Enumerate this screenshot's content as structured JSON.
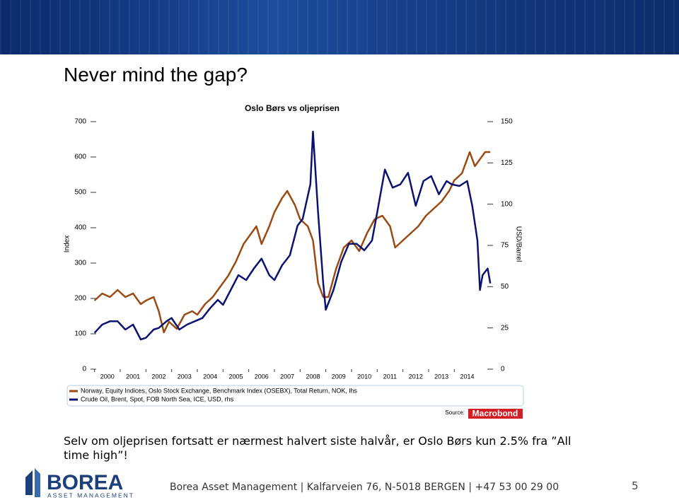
{
  "slide_title": "Never mind the gap?",
  "chart_data": {
    "type": "line",
    "title": "Oslo Børs vs oljeprisen",
    "y_label": "Index",
    "y2_label": "USD/Barrel",
    "xlim": [
      1999.9,
      2015.45
    ],
    "xticks": [
      2000,
      2001,
      2002,
      2003,
      2004,
      2005,
      2006,
      2007,
      2008,
      2009,
      2010,
      2011,
      2012,
      2013,
      2014
    ],
    "ylim": [
      0,
      700
    ],
    "yticks": [
      0,
      100,
      200,
      300,
      400,
      500,
      600,
      700
    ],
    "y2lim": [
      0,
      150
    ],
    "y2ticks": [
      0,
      25,
      50,
      75,
      100,
      125,
      150
    ],
    "series": [
      {
        "name": "Norway, Equity Indices, Oslo Stock Exchange, Benchmark Index (OSEBX), Total Return, NOK, lhs",
        "color": "#9a4a12",
        "axis": "y",
        "x": [
          2000.0,
          2000.3,
          2000.6,
          2000.9,
          2001.2,
          2001.5,
          2001.8,
          2002.0,
          2002.3,
          2002.5,
          2002.7,
          2002.9,
          2003.2,
          2003.5,
          2003.8,
          2004.0,
          2004.3,
          2004.6,
          2004.9,
          2005.2,
          2005.5,
          2005.8,
          2006.0,
          2006.3,
          2006.5,
          2006.8,
          2007.0,
          2007.3,
          2007.5,
          2007.8,
          2008.0,
          2008.3,
          2008.5,
          2008.7,
          2008.9,
          2009.1,
          2009.4,
          2009.7,
          2010.0,
          2010.3,
          2010.6,
          2010.9,
          2011.2,
          2011.5,
          2011.7,
          2012.0,
          2012.3,
          2012.6,
          2012.9,
          2013.2,
          2013.5,
          2013.8,
          2014.0,
          2014.3,
          2014.6,
          2014.8,
          2015.0,
          2015.2,
          2015.4
        ],
        "values": [
          194,
          214,
          204,
          224,
          204,
          214,
          184,
          194,
          204,
          164,
          104,
          134,
          114,
          154,
          164,
          154,
          184,
          204,
          234,
          264,
          304,
          354,
          374,
          404,
          354,
          404,
          444,
          484,
          504,
          464,
          424,
          404,
          364,
          244,
          204,
          204,
          284,
          344,
          364,
          334,
          384,
          424,
          434,
          404,
          344,
          364,
          384,
          404,
          434,
          454,
          474,
          504,
          534,
          554,
          614,
          574,
          594,
          614,
          614
        ]
      },
      {
        "name": "Crude Oil, Brent, Spot, FOB North Sea, ICE, USD, rhs",
        "color": "#0c1270",
        "axis": "y2",
        "x": [
          2000.0,
          2000.3,
          2000.6,
          2000.9,
          2001.2,
          2001.5,
          2001.8,
          2002.0,
          2002.3,
          2002.5,
          2002.8,
          2003.0,
          2003.3,
          2003.6,
          2003.9,
          2004.2,
          2004.5,
          2004.8,
          2005.0,
          2005.3,
          2005.6,
          2005.9,
          2006.2,
          2006.5,
          2006.8,
          2007.0,
          2007.3,
          2007.6,
          2007.9,
          2008.1,
          2008.4,
          2008.5,
          2008.7,
          2008.9,
          2009.0,
          2009.3,
          2009.6,
          2009.9,
          2010.2,
          2010.5,
          2010.8,
          2011.0,
          2011.3,
          2011.6,
          2011.9,
          2012.2,
          2012.5,
          2012.8,
          2013.1,
          2013.4,
          2013.7,
          2013.9,
          2014.2,
          2014.5,
          2014.7,
          2014.9,
          2015.0,
          2015.1,
          2015.3,
          2015.4
        ],
        "values": [
          22,
          27,
          29,
          29,
          24,
          27,
          18,
          19,
          24,
          25,
          29,
          31,
          24,
          27,
          29,
          31,
          37,
          42,
          39,
          48,
          57,
          54,
          61,
          67,
          57,
          54,
          63,
          69,
          87,
          91,
          112,
          144,
          95,
          52,
          36,
          48,
          65,
          76,
          76,
          72,
          78,
          95,
          121,
          110,
          112,
          119,
          99,
          114,
          117,
          106,
          114,
          112,
          111,
          114,
          99,
          78,
          48,
          57,
          61,
          52
        ]
      }
    ],
    "source_label": "Source:",
    "source": "Macrobond"
  },
  "note": "Selv om oljeprisen fortsatt er nærmest halvert siste halvår, er Oslo Børs kun 2.5% fra ”All time high”!",
  "logo": {
    "name": "BOREA",
    "tagline": "ASSET MANAGEMENT"
  },
  "footer": "Borea Asset Management | Kalfarveien 76, N-5018 BERGEN | +47 53 00 29 00",
  "page_number": "5"
}
